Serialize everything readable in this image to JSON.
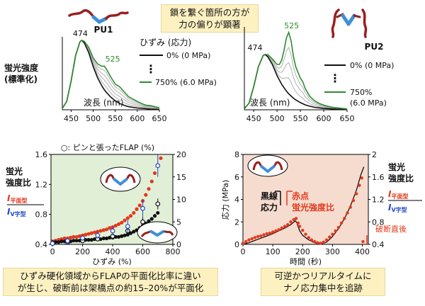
{
  "top_callout": {
    "line1": "鎖を繋ぐ箇所の方が",
    "line2": "力の偏りが顕著"
  },
  "bottom_left_callout": {
    "line1": "ひずみ硬化領域からFLAPの平面化比率に違い",
    "line2": "が生じ、破断前は架橋点の約15–20%が平面化"
  },
  "bottom_right_callout": {
    "line1": "可逆かつリアルタイムに",
    "line2": "ナノ応力集中を追跡"
  },
  "colors": {
    "green": "#2e8b2e",
    "red": "#e2391d",
    "black": "#111111",
    "blue": "#2248c4",
    "gray": "#b0b0b0",
    "panel_green": "#e2efd7",
    "panel_pink": "#f6dccf",
    "callout": "#fdf1c2",
    "molecule_red": "#9a1f1f",
    "molecule_blue": "#3f8ed6"
  },
  "chart_data": [
    {
      "type": "line",
      "panel_title": "PU1",
      "ylabel": "蛍光強度",
      "ylabel2": "(標準化)",
      "xlabel": "波長 (nm)",
      "xticks": [
        450,
        500,
        550,
        600,
        650
      ],
      "xlim": [
        430,
        650
      ],
      "ylim": [
        0,
        1.05
      ],
      "peak_labels": [
        {
          "text": "474",
          "x": 474,
          "y": 1.0,
          "color": "black"
        },
        {
          "text": "525",
          "x": 525,
          "y": 0.63,
          "color": "green"
        }
      ],
      "legend_title": "ひずみ (応力)",
      "legend": [
        {
          "label": "0% (0 MPa)",
          "color": "black"
        },
        {
          "label": "750% (6.0 MPa)",
          "color": "green"
        }
      ],
      "legend_dots": "⋮",
      "x": [
        430,
        440,
        450,
        460,
        470,
        474,
        480,
        490,
        500,
        510,
        520,
        525,
        530,
        540,
        550,
        560,
        570,
        580,
        590,
        600,
        610,
        620,
        630,
        640,
        650
      ],
      "series": [
        {
          "color": "black",
          "values": [
            0.02,
            0.12,
            0.42,
            0.78,
            0.98,
            1.0,
            0.96,
            0.82,
            0.62,
            0.46,
            0.34,
            0.29,
            0.25,
            0.18,
            0.13,
            0.09,
            0.065,
            0.045,
            0.035,
            0.025,
            0.02,
            0.015,
            0.01,
            0.008,
            0.005
          ]
        },
        {
          "color": "gray",
          "values": [
            0.02,
            0.12,
            0.42,
            0.78,
            0.98,
            1.0,
            0.965,
            0.835,
            0.645,
            0.5,
            0.4,
            0.36,
            0.32,
            0.24,
            0.18,
            0.14,
            0.105,
            0.075,
            0.06,
            0.045,
            0.035,
            0.025,
            0.02,
            0.015,
            0.01
          ]
        },
        {
          "color": "gray",
          "values": [
            0.02,
            0.12,
            0.42,
            0.78,
            0.98,
            1.0,
            0.97,
            0.85,
            0.67,
            0.54,
            0.46,
            0.43,
            0.39,
            0.3,
            0.23,
            0.19,
            0.145,
            0.105,
            0.085,
            0.065,
            0.05,
            0.035,
            0.03,
            0.022,
            0.015
          ]
        },
        {
          "color": "gray",
          "values": [
            0.02,
            0.12,
            0.42,
            0.78,
            0.98,
            1.0,
            0.975,
            0.865,
            0.695,
            0.58,
            0.52,
            0.5,
            0.46,
            0.36,
            0.28,
            0.24,
            0.185,
            0.135,
            0.11,
            0.085,
            0.065,
            0.045,
            0.04,
            0.03,
            0.02
          ]
        },
        {
          "color": "gray",
          "values": [
            0.02,
            0.12,
            0.42,
            0.78,
            0.98,
            1.0,
            0.98,
            0.88,
            0.72,
            0.62,
            0.58,
            0.57,
            0.53,
            0.42,
            0.33,
            0.29,
            0.225,
            0.165,
            0.135,
            0.105,
            0.08,
            0.055,
            0.05,
            0.038,
            0.025
          ]
        },
        {
          "color": "green",
          "values": [
            0.02,
            0.12,
            0.42,
            0.78,
            0.98,
            1.0,
            0.985,
            0.895,
            0.745,
            0.66,
            0.625,
            0.63,
            0.585,
            0.47,
            0.37,
            0.33,
            0.26,
            0.19,
            0.155,
            0.12,
            0.09,
            0.065,
            0.06,
            0.045,
            0.03
          ]
        }
      ]
    },
    {
      "type": "line",
      "panel_title": "PU2",
      "xlabel": "波長 (nm)",
      "xticks": [
        450,
        500,
        550,
        600,
        650
      ],
      "xlim": [
        430,
        650
      ],
      "ylim": [
        0,
        1.5
      ],
      "peak_labels": [
        {
          "text": "474",
          "x": 474,
          "y": 1.0,
          "color": "black"
        },
        {
          "text": "525",
          "x": 525,
          "y": 1.4,
          "color": "green"
        }
      ],
      "legend": [
        {
          "label": "0% (0 MPa)",
          "color": "black"
        },
        {
          "label": "750%",
          "label2": "(6.0 MPa)",
          "color": "green"
        }
      ],
      "legend_dots": "⋮",
      "x": [
        430,
        440,
        450,
        460,
        470,
        474,
        480,
        490,
        500,
        505,
        510,
        515,
        520,
        525,
        530,
        535,
        540,
        550,
        555,
        560,
        570,
        580,
        590,
        600,
        610,
        620,
        630,
        640,
        650
      ],
      "series": [
        {
          "color": "black",
          "values": [
            0.02,
            0.12,
            0.42,
            0.78,
            0.98,
            1.0,
            0.96,
            0.82,
            0.62,
            0.54,
            0.46,
            0.4,
            0.34,
            0.29,
            0.25,
            0.21,
            0.18,
            0.13,
            0.11,
            0.09,
            0.065,
            0.045,
            0.035,
            0.025,
            0.02,
            0.015,
            0.01,
            0.008,
            0.005
          ]
        },
        {
          "color": "gray",
          "values": [
            0.02,
            0.12,
            0.42,
            0.78,
            0.98,
            1.0,
            0.97,
            0.845,
            0.67,
            0.61,
            0.57,
            0.57,
            0.58,
            0.57,
            0.5,
            0.4,
            0.33,
            0.24,
            0.21,
            0.165,
            0.11,
            0.075,
            0.055,
            0.04,
            0.03,
            0.022,
            0.016,
            0.012,
            0.008
          ]
        },
        {
          "color": "gray",
          "values": [
            0.02,
            0.12,
            0.42,
            0.78,
            0.98,
            1.0,
            0.98,
            0.87,
            0.72,
            0.68,
            0.68,
            0.74,
            0.82,
            0.85,
            0.75,
            0.59,
            0.48,
            0.35,
            0.31,
            0.24,
            0.155,
            0.105,
            0.075,
            0.055,
            0.04,
            0.03,
            0.022,
            0.016,
            0.011
          ]
        },
        {
          "color": "gray",
          "values": [
            0.02,
            0.12,
            0.42,
            0.78,
            0.98,
            1.0,
            0.99,
            0.895,
            0.77,
            0.75,
            0.79,
            0.91,
            1.06,
            1.13,
            1.0,
            0.78,
            0.63,
            0.46,
            0.41,
            0.315,
            0.2,
            0.135,
            0.095,
            0.07,
            0.05,
            0.038,
            0.028,
            0.02,
            0.014
          ]
        },
        {
          "color": "green",
          "values": [
            0.02,
            0.12,
            0.42,
            0.78,
            0.98,
            1.0,
            1.0,
            0.92,
            0.82,
            0.82,
            0.9,
            1.08,
            1.3,
            1.4,
            1.25,
            0.97,
            0.78,
            0.57,
            0.51,
            0.39,
            0.245,
            0.165,
            0.115,
            0.085,
            0.06,
            0.045,
            0.034,
            0.024,
            0.017
          ]
        }
      ]
    },
    {
      "type": "scatter",
      "ylabel": "蛍光",
      "ylabel2": "強度比",
      "ratio_numerator": "I",
      "ratio_numerator_sub": "平面型",
      "ratio_denominator": "I",
      "ratio_denominator_sub": "V字型",
      "xlabel": "ひずみ (%)",
      "xticks": [
        0,
        200,
        400,
        600,
        800
      ],
      "xlim": [
        -10,
        800
      ],
      "yticks": [
        0.4,
        0.8,
        1.2,
        1.6
      ],
      "ylim": [
        0.4,
        1.6
      ],
      "y2ticks": [
        0,
        5,
        10,
        15,
        20
      ],
      "y2lim": [
        0,
        20
      ],
      "y2_legend": "○: ピンと張ったFLAP (%)",
      "series": [
        {
          "name": "red",
          "color": "red",
          "x": [
            0,
            20,
            40,
            60,
            80,
            100,
            120,
            140,
            160,
            180,
            200,
            220,
            240,
            260,
            280,
            300,
            320,
            340,
            360,
            380,
            400,
            420,
            440,
            460,
            480,
            500,
            520,
            540,
            560,
            580,
            600,
            620,
            640,
            660,
            680,
            700,
            720
          ],
          "values": [
            0.44,
            0.45,
            0.46,
            0.47,
            0.48,
            0.48,
            0.49,
            0.5,
            0.5,
            0.51,
            0.52,
            0.53,
            0.54,
            0.55,
            0.56,
            0.57,
            0.58,
            0.59,
            0.6,
            0.62,
            0.63,
            0.65,
            0.67,
            0.69,
            0.72,
            0.75,
            0.78,
            0.82,
            0.87,
            0.92,
            0.98,
            1.06,
            1.14,
            1.24,
            1.35,
            1.46,
            1.55
          ]
        },
        {
          "name": "black",
          "color": "black",
          "x": [
            0,
            20,
            40,
            60,
            80,
            100,
            120,
            140,
            160,
            180,
            200,
            220,
            240,
            260,
            280,
            300,
            320,
            340,
            360,
            380,
            400,
            420,
            440,
            460,
            480,
            500,
            520,
            540,
            560,
            580,
            600,
            620,
            640,
            660,
            680,
            700
          ],
          "values": [
            0.43,
            0.43,
            0.43,
            0.44,
            0.44,
            0.44,
            0.44,
            0.45,
            0.45,
            0.45,
            0.45,
            0.46,
            0.46,
            0.46,
            0.47,
            0.47,
            0.47,
            0.48,
            0.48,
            0.49,
            0.49,
            0.5,
            0.5,
            0.51,
            0.52,
            0.53,
            0.55,
            0.57,
            0.59,
            0.62,
            0.65,
            0.68,
            0.71,
            0.74,
            0.78,
            0.82
          ]
        },
        {
          "name": "open-black",
          "color": "black",
          "axis": "right",
          "x": [
            0,
            100,
            200,
            300,
            400,
            500,
            600,
            700
          ],
          "values": [
            0.2,
            0.5,
            0.8,
            1.2,
            1.8,
            3.0,
            5.0,
            9.0
          ],
          "err": [
            0.3,
            0.4,
            0.4,
            0.5,
            0.6,
            0.8,
            1.0,
            1.2
          ]
        },
        {
          "name": "open-blue",
          "color": "blue",
          "axis": "right",
          "x": [
            0,
            100,
            200,
            300,
            400,
            500,
            600,
            700
          ],
          "values": [
            0.2,
            0.8,
            1.4,
            2.0,
            3.0,
            4.0,
            8.0,
            17.5
          ],
          "err": [
            0.4,
            0.6,
            0.6,
            0.8,
            1.0,
            1.4,
            2.0,
            2.5
          ]
        }
      ]
    },
    {
      "type": "line",
      "ylabel": "応力 (MPa)",
      "xlabel": "時間 (秒)",
      "xticks": [
        0,
        100,
        200,
        300,
        400
      ],
      "xlim": [
        0,
        420
      ],
      "yticks": [
        0,
        2,
        4,
        6,
        8
      ],
      "ylim": [
        0,
        8
      ],
      "y2label": "蛍光",
      "y2label2": "強度比",
      "ratio_numerator": "I",
      "ratio_numerator_sub": "平面型",
      "ratio_denominator": "I",
      "ratio_denominator_sub": "V字型",
      "y2ticks": [
        0.4,
        0.8,
        1.2,
        1.6,
        2
      ],
      "y2lim": [
        0.4,
        2.0
      ],
      "label_black": "黒線",
      "label_black2": "応力",
      "label_red": "赤点",
      "label_red2": "蛍光強度比",
      "break_label": "破断直後",
      "series": [
        {
          "name": "stress",
          "color": "black",
          "x": [
            0,
            20,
            40,
            60,
            80,
            100,
            120,
            140,
            160,
            175,
            180,
            190,
            200,
            220,
            240,
            260,
            280,
            300,
            320,
            340,
            360,
            380,
            395,
            405
          ],
          "values": [
            0.0,
            0.15,
            0.35,
            0.55,
            0.75,
            0.95,
            1.2,
            1.45,
            1.75,
            2.1,
            1.95,
            1.2,
            0.8,
            0.4,
            0.15,
            0.0,
            0.2,
            0.7,
            1.4,
            2.3,
            3.4,
            4.8,
            6.2,
            6.9
          ]
        },
        {
          "name": "ratio",
          "color": "red",
          "axis": "right",
          "x": [
            0,
            10,
            20,
            30,
            40,
            50,
            60,
            70,
            80,
            90,
            100,
            110,
            120,
            130,
            140,
            150,
            160,
            170,
            178,
            185,
            190,
            200,
            210,
            220,
            230,
            240,
            250,
            260,
            270,
            280,
            290,
            300,
            310,
            320,
            330,
            340,
            350,
            360,
            370,
            380,
            390,
            398,
            402
          ],
          "values": [
            0.42,
            0.45,
            0.48,
            0.5,
            0.52,
            0.54,
            0.55,
            0.57,
            0.59,
            0.6,
            0.62,
            0.64,
            0.66,
            0.69,
            0.72,
            0.75,
            0.8,
            0.84,
            0.86,
            0.78,
            0.72,
            0.65,
            0.58,
            0.52,
            0.48,
            0.45,
            0.43,
            0.42,
            0.44,
            0.48,
            0.53,
            0.58,
            0.64,
            0.7,
            0.78,
            0.86,
            0.96,
            1.06,
            1.18,
            1.3,
            1.45,
            1.58,
            0.45
          ]
        }
      ]
    }
  ]
}
